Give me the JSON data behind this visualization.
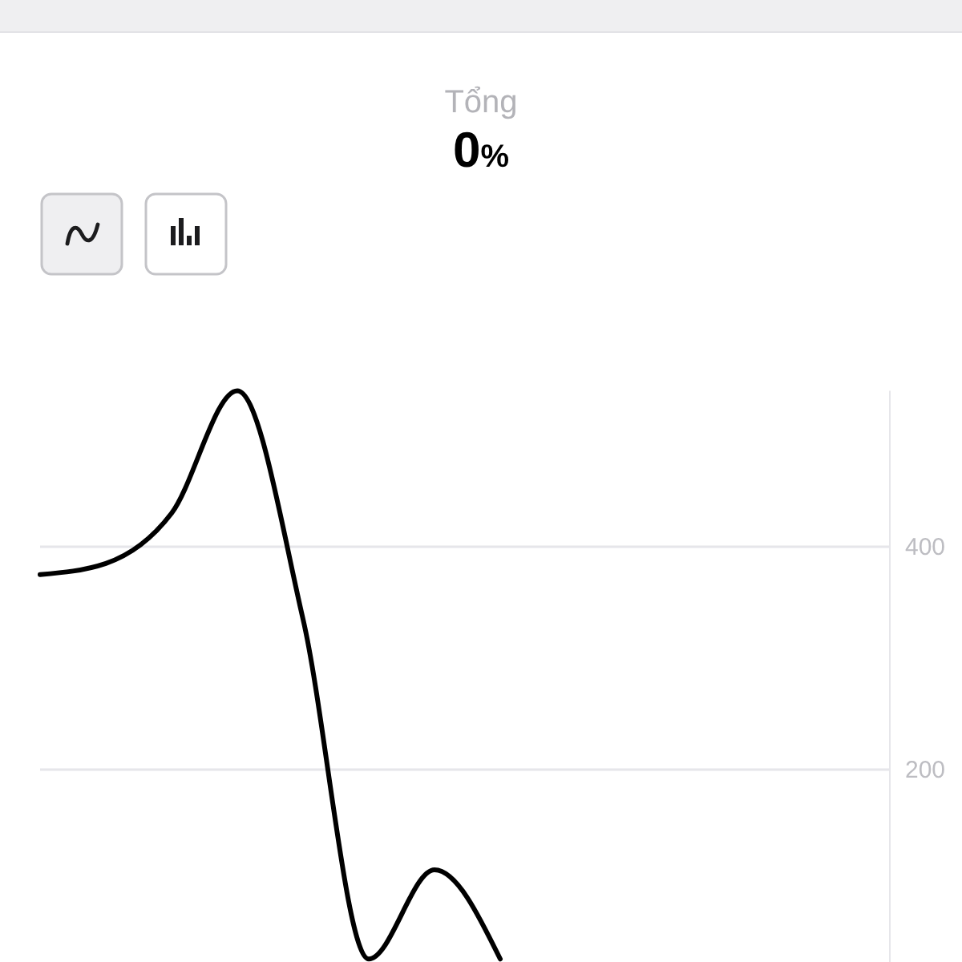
{
  "chart_data": {
    "type": "line",
    "title": "Tổng",
    "subtitle": "0%",
    "categories": [
      null,
      null,
      null,
      null,
      null,
      null,
      null,
      null
    ],
    "values": [
      375,
      385,
      430,
      540,
      335,
      30,
      110,
      30
    ],
    "color": "#000000",
    "ylim": [
      25,
      540
    ],
    "yticks": [
      200,
      400
    ],
    "grid": "y"
  }
}
